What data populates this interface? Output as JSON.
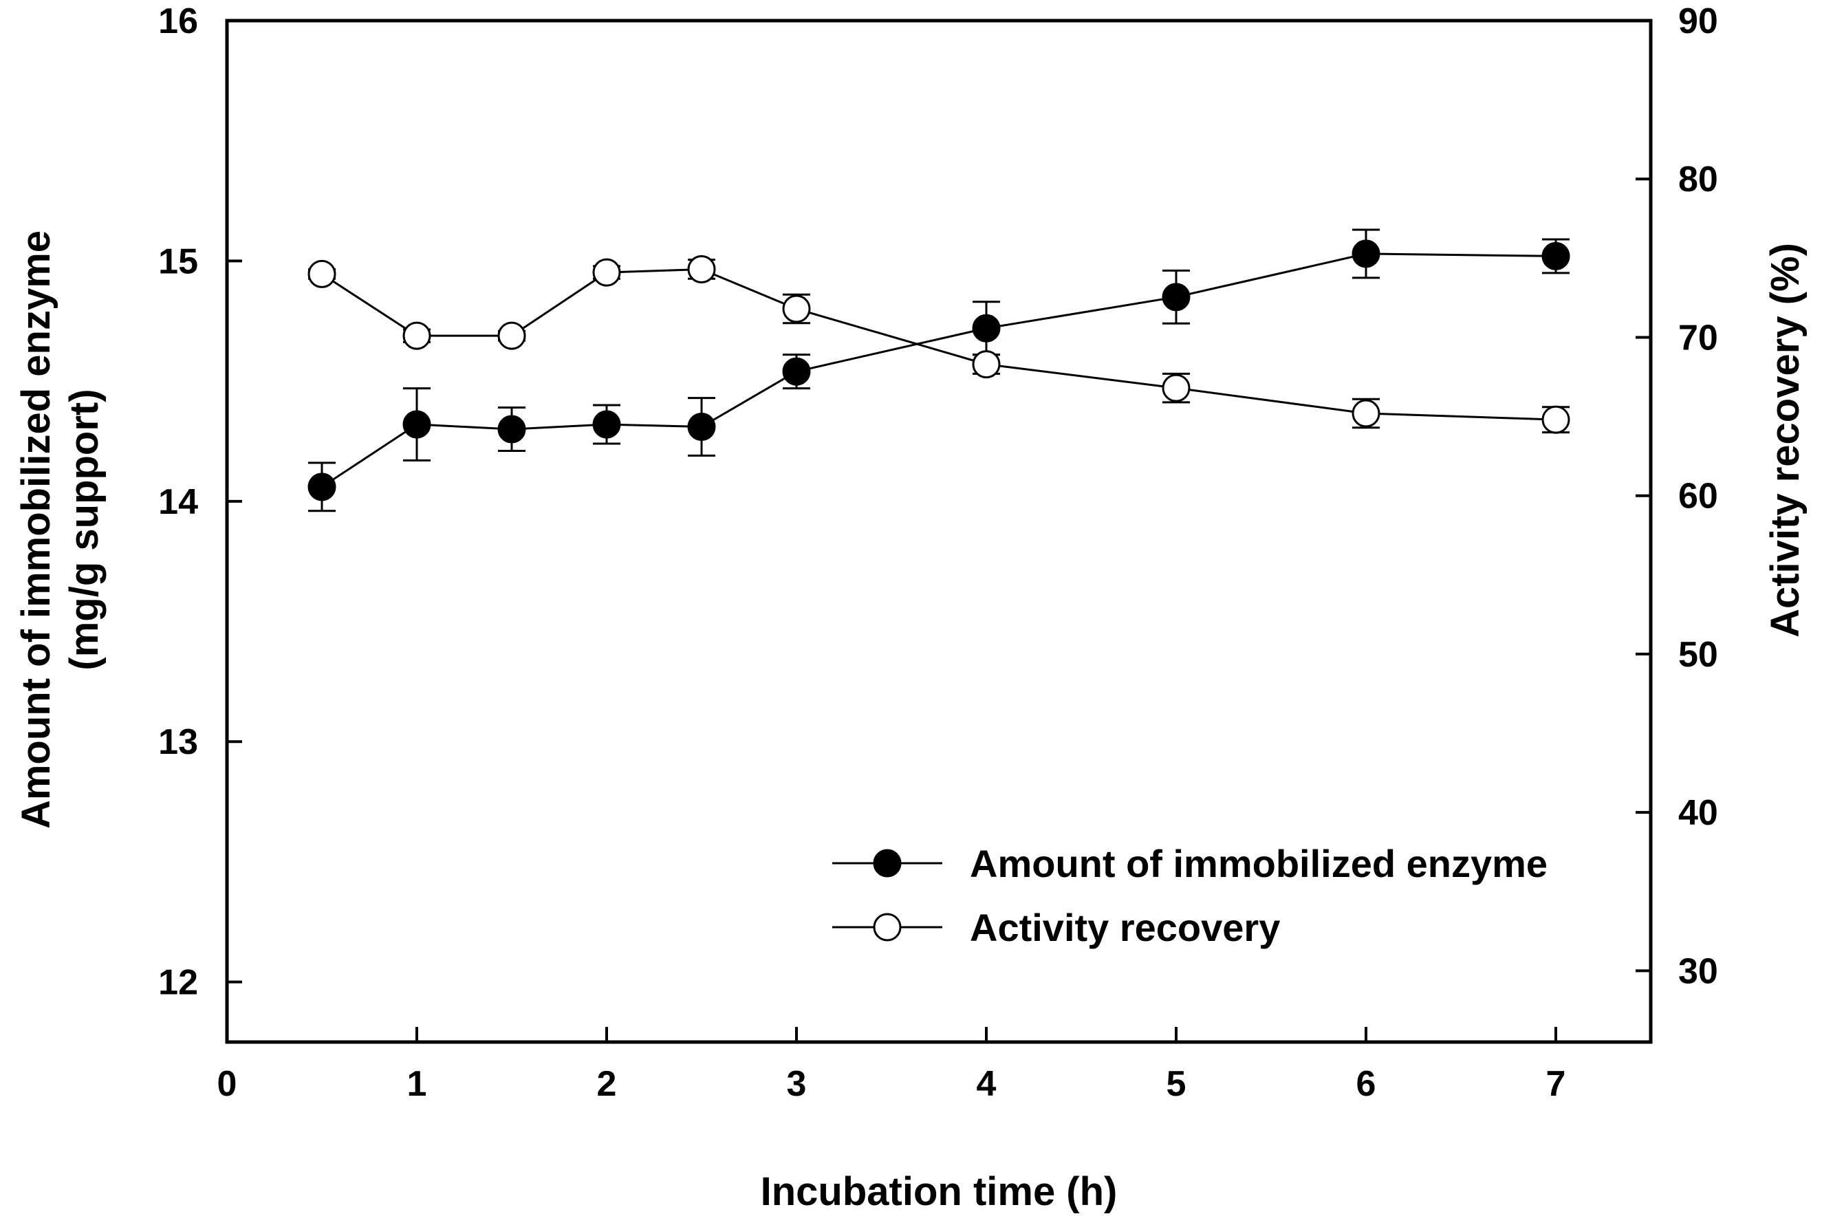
{
  "chart_data": {
    "type": "line",
    "title": "",
    "xlabel": "Incubation time  (h)",
    "ylabel_left_line1": "Amount of immobilized enzyme",
    "ylabel_left_line2": "(mg/g support)",
    "ylabel_right": "Activity recovery (%)",
    "xlim": [
      0,
      7.5
    ],
    "ylim_left": [
      11.75,
      16
    ],
    "ylim_right": [
      25.5,
      90
    ],
    "xticks": [
      0,
      1,
      2,
      3,
      4,
      5,
      6,
      7
    ],
    "xtick_labels": [
      "0",
      "1",
      "2",
      "3",
      "4",
      "5",
      "6",
      "7"
    ],
    "yticks_left": [
      12,
      13,
      14,
      15,
      16
    ],
    "ytick_labels_left": [
      "12",
      "13",
      "14",
      "15",
      "16"
    ],
    "yticks_right": [
      30,
      40,
      50,
      60,
      70,
      80,
      90
    ],
    "ytick_labels_right": [
      "30",
      "40",
      "50",
      "60",
      "70",
      "80",
      "90"
    ],
    "grid": false,
    "legend_position": "lower-right",
    "series": [
      {
        "name": "Amount of immobilized enzyme",
        "axis": "left",
        "marker": "filled-circle",
        "color": "#000000",
        "x": [
          0.5,
          1,
          1.5,
          2,
          2.5,
          3,
          4,
          5,
          6,
          7
        ],
        "values": [
          14.06,
          14.32,
          14.3,
          14.32,
          14.31,
          14.54,
          14.72,
          14.85,
          15.03,
          15.02
        ],
        "errors": [
          0.1,
          0.15,
          0.09,
          0.08,
          0.12,
          0.07,
          0.11,
          0.11,
          0.1,
          0.07
        ]
      },
      {
        "name": "Activity recovery",
        "axis": "right",
        "marker": "open-circle",
        "color": "#000000",
        "x": [
          0.5,
          1,
          1.5,
          2,
          2.5,
          3,
          4,
          5,
          6,
          7
        ],
        "values": [
          74.0,
          70.1,
          70.1,
          74.1,
          74.3,
          71.8,
          68.3,
          66.8,
          65.2,
          64.8
        ],
        "errors": [
          0.3,
          0.4,
          0.3,
          0.4,
          0.6,
          0.9,
          0.6,
          0.9,
          0.9,
          0.8
        ]
      }
    ]
  }
}
